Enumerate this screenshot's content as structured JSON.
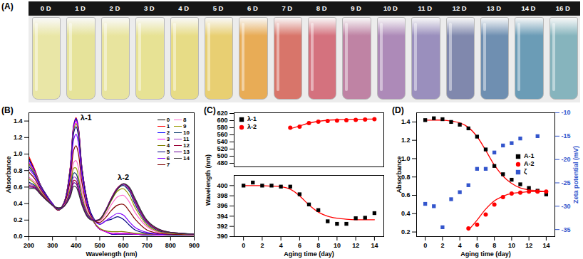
{
  "panel_A": {
    "label": "(A)",
    "vials": [
      {
        "label": "0 D",
        "color": "#e9e6a6"
      },
      {
        "label": "1 D",
        "color": "#e6e39a"
      },
      {
        "label": "2 D",
        "color": "#e8e49e"
      },
      {
        "label": "3 D",
        "color": "#e7e294"
      },
      {
        "label": "4 D",
        "color": "#e7dc86"
      },
      {
        "label": "5 D",
        "color": "#e8cf72"
      },
      {
        "label": "6 D",
        "color": "#e8ac56"
      },
      {
        "label": "7 D",
        "color": "#d8756a"
      },
      {
        "label": "8 D",
        "color": "#d4727e"
      },
      {
        "label": "9 D",
        "color": "#bf83a4"
      },
      {
        "label": "10 D",
        "color": "#ad8ab8"
      },
      {
        "label": "11 D",
        "color": "#9a8fbd"
      },
      {
        "label": "12 D",
        "color": "#8088ad"
      },
      {
        "label": "13 D",
        "color": "#6f8fb1"
      },
      {
        "label": "14 D",
        "color": "#6b9cb6"
      },
      {
        "label": "16 D",
        "color": "#86b4bd"
      }
    ]
  },
  "chart_data": [
    {
      "type": "line",
      "title": "(B)",
      "xlabel": "Wavelength (nm)",
      "ylabel": "Absorbance",
      "xlim": [
        200,
        900
      ],
      "xticks": [
        200,
        300,
        400,
        500,
        600,
        700,
        800,
        900
      ],
      "ylim": [
        0,
        1.5
      ],
      "yticks": [
        {
          "value": 0,
          "label": "0.0"
        },
        0.2,
        0.4,
        0.6,
        0.8,
        {
          "value": 1,
          "label": "1.0"
        },
        1.2,
        1.4
      ],
      "legend": "top-right",
      "annotations": [
        "λ-1",
        "λ-2"
      ],
      "x": [
        200,
        225,
        250,
        275,
        300,
        325,
        350,
        375,
        390,
        400,
        410,
        425,
        450,
        475,
        500,
        525,
        550,
        575,
        600,
        625,
        650,
        700,
        750,
        800,
        900
      ],
      "series": [
        {
          "name": "0",
          "color": "#000000",
          "values": [
            0.95,
            0.8,
            0.62,
            0.5,
            0.4,
            0.32,
            0.42,
            0.83,
            1.34,
            1.42,
            1.3,
            0.82,
            0.4,
            0.18,
            0.09,
            0.06,
            0.03,
            0.03,
            0.03,
            0.03,
            0.03,
            0.02,
            0.02,
            0.02,
            0.02
          ]
        },
        {
          "name": "1",
          "color": "#ff0000",
          "values": [
            0.97,
            0.81,
            0.62,
            0.5,
            0.4,
            0.32,
            0.42,
            0.84,
            1.36,
            1.44,
            1.32,
            0.83,
            0.4,
            0.18,
            0.09,
            0.06,
            0.03,
            0.03,
            0.03,
            0.03,
            0.03,
            0.02,
            0.02,
            0.02,
            0.02
          ]
        },
        {
          "name": "2",
          "color": "#0000ff",
          "values": [
            0.93,
            0.79,
            0.62,
            0.5,
            0.4,
            0.32,
            0.42,
            0.83,
            1.35,
            1.43,
            1.31,
            0.83,
            0.4,
            0.18,
            0.09,
            0.06,
            0.03,
            0.03,
            0.03,
            0.03,
            0.03,
            0.02,
            0.02,
            0.02,
            0.02
          ]
        },
        {
          "name": "3",
          "color": "#ff00ff",
          "values": [
            0.9,
            0.78,
            0.61,
            0.49,
            0.39,
            0.32,
            0.42,
            0.82,
            1.32,
            1.4,
            1.28,
            0.81,
            0.39,
            0.18,
            0.09,
            0.06,
            0.04,
            0.04,
            0.04,
            0.04,
            0.03,
            0.03,
            0.02,
            0.02,
            0.02
          ]
        },
        {
          "name": "4",
          "color": "#808000",
          "values": [
            0.88,
            0.77,
            0.61,
            0.49,
            0.39,
            0.32,
            0.42,
            0.81,
            1.29,
            1.37,
            1.26,
            0.8,
            0.39,
            0.18,
            0.1,
            0.07,
            0.06,
            0.06,
            0.06,
            0.05,
            0.04,
            0.03,
            0.03,
            0.02,
            0.02
          ]
        },
        {
          "name": "5",
          "color": "#000080",
          "values": [
            0.85,
            0.75,
            0.6,
            0.49,
            0.39,
            0.32,
            0.41,
            0.79,
            1.26,
            1.33,
            1.22,
            0.78,
            0.39,
            0.22,
            0.15,
            0.19,
            0.21,
            0.24,
            0.21,
            0.14,
            0.08,
            0.04,
            0.03,
            0.02,
            0.02
          ]
        },
        {
          "name": "6",
          "color": "#8000ff",
          "values": [
            0.82,
            0.73,
            0.59,
            0.48,
            0.39,
            0.32,
            0.4,
            0.74,
            1.18,
            1.24,
            1.13,
            0.73,
            0.36,
            0.2,
            0.15,
            0.19,
            0.24,
            0.28,
            0.26,
            0.18,
            0.11,
            0.05,
            0.03,
            0.03,
            0.02
          ]
        },
        {
          "name": "7",
          "color": "#800000",
          "values": [
            0.78,
            0.7,
            0.57,
            0.47,
            0.38,
            0.32,
            0.39,
            0.68,
            1.05,
            1.1,
            1.0,
            0.65,
            0.33,
            0.2,
            0.17,
            0.23,
            0.32,
            0.38,
            0.39,
            0.31,
            0.21,
            0.08,
            0.04,
            0.03,
            0.02
          ]
        },
        {
          "name": "8",
          "color": "#ff66cc",
          "values": [
            0.72,
            0.66,
            0.55,
            0.46,
            0.38,
            0.33,
            0.38,
            0.61,
            0.9,
            0.92,
            0.83,
            0.55,
            0.29,
            0.2,
            0.19,
            0.27,
            0.39,
            0.48,
            0.5,
            0.42,
            0.29,
            0.12,
            0.05,
            0.04,
            0.03
          ]
        },
        {
          "name": "9",
          "color": "#999900",
          "values": [
            0.7,
            0.64,
            0.54,
            0.46,
            0.38,
            0.33,
            0.37,
            0.58,
            0.83,
            0.83,
            0.72,
            0.49,
            0.27,
            0.2,
            0.2,
            0.3,
            0.44,
            0.55,
            0.58,
            0.5,
            0.35,
            0.14,
            0.06,
            0.04,
            0.03
          ]
        },
        {
          "name": "10",
          "color": "#003366",
          "values": [
            0.66,
            0.62,
            0.53,
            0.45,
            0.38,
            0.33,
            0.37,
            0.55,
            0.77,
            0.76,
            0.66,
            0.45,
            0.26,
            0.2,
            0.21,
            0.32,
            0.47,
            0.58,
            0.62,
            0.55,
            0.39,
            0.16,
            0.07,
            0.05,
            0.03
          ]
        },
        {
          "name": "11",
          "color": "#9933cc",
          "values": [
            0.64,
            0.61,
            0.52,
            0.45,
            0.38,
            0.34,
            0.37,
            0.53,
            0.72,
            0.71,
            0.62,
            0.43,
            0.25,
            0.2,
            0.21,
            0.32,
            0.47,
            0.59,
            0.63,
            0.57,
            0.41,
            0.17,
            0.08,
            0.05,
            0.03
          ]
        },
        {
          "name": "12",
          "color": "#990033",
          "values": [
            0.62,
            0.6,
            0.52,
            0.45,
            0.38,
            0.34,
            0.37,
            0.51,
            0.68,
            0.67,
            0.58,
            0.41,
            0.24,
            0.2,
            0.21,
            0.32,
            0.47,
            0.59,
            0.64,
            0.58,
            0.43,
            0.18,
            0.08,
            0.05,
            0.03
          ]
        },
        {
          "name": "13",
          "color": "#660099",
          "values": [
            0.6,
            0.59,
            0.51,
            0.44,
            0.38,
            0.34,
            0.37,
            0.5,
            0.65,
            0.64,
            0.56,
            0.4,
            0.24,
            0.2,
            0.21,
            0.32,
            0.46,
            0.58,
            0.64,
            0.59,
            0.44,
            0.19,
            0.09,
            0.05,
            0.03
          ]
        },
        {
          "name": "14",
          "color": "#333333",
          "values": [
            0.58,
            0.58,
            0.51,
            0.44,
            0.38,
            0.35,
            0.37,
            0.48,
            0.61,
            0.6,
            0.53,
            0.38,
            0.23,
            0.19,
            0.21,
            0.31,
            0.45,
            0.57,
            0.64,
            0.6,
            0.46,
            0.2,
            0.09,
            0.05,
            0.03
          ]
        }
      ]
    },
    {
      "type": "scatter",
      "title": "(C)",
      "xlabel": "Aging time (day)",
      "ylabel": "Wavelength (nm)",
      "xlim": [
        -1,
        15
      ],
      "xticks": [
        0,
        2,
        4,
        6,
        8,
        10,
        12,
        14
      ],
      "y_segments": [
        {
          "ylim": [
            390,
            402
          ],
          "yticks": [
            390,
            392,
            394,
            396,
            398,
            400
          ]
        },
        {
          "ylim": [
            470,
            622
          ],
          "yticks": [
            480,
            500,
            520,
            540,
            560,
            580,
            600,
            620
          ]
        }
      ],
      "legend": "top-left",
      "x": [
        0,
        1,
        2,
        3,
        4,
        5,
        6,
        7,
        8,
        9,
        10,
        11,
        12,
        13,
        14
      ],
      "series": [
        {
          "name": "λ-1",
          "color": "#000000",
          "marker": "square",
          "values": [
            400,
            400.6,
            400,
            400,
            399.8,
            399.8,
            398.3,
            396.3,
            395.2,
            393,
            392.5,
            392.5,
            393.6,
            393.7,
            394.6
          ],
          "fit": [
            400,
            400,
            400,
            399.9,
            399.8,
            399.3,
            398,
            396.2,
            394.8,
            394,
            393.6,
            393.4,
            393.3,
            393.3,
            393.3
          ]
        },
        {
          "name": "λ-2",
          "color": "#ff0000",
          "marker": "circle",
          "values": [
            null,
            null,
            null,
            null,
            null,
            580,
            583,
            593,
            597,
            599,
            600,
            601,
            602,
            603,
            604
          ],
          "fit": [
            null,
            null,
            null,
            null,
            null,
            577,
            585,
            593,
            598,
            601,
            602.5,
            603.3,
            603.7,
            604,
            604.2
          ]
        }
      ]
    },
    {
      "type": "scatter",
      "title": "(D)",
      "xlabel": "Aging time (day)",
      "ylabel": "Absorbance",
      "y2label": "Zeta potential (mV)",
      "xlim": [
        -1,
        15
      ],
      "xticks": [
        0,
        2,
        4,
        6,
        8,
        10,
        12,
        14
      ],
      "ylim": [
        0.15,
        1.5
      ],
      "yticks": [
        0.2,
        0.4,
        0.6,
        0.8,
        {
          "value": 1,
          "label": "1.0"
        },
        1.2,
        1.4
      ],
      "y2lim": [
        -36.5,
        -10
      ],
      "y2ticks": [
        -35,
        -30,
        -25,
        -20,
        -15,
        -10
      ],
      "legend": "right",
      "x": [
        0,
        1,
        2,
        3,
        4,
        5,
        6,
        7,
        8,
        9,
        10,
        11,
        12,
        13,
        14
      ],
      "series": [
        {
          "name": "A-1",
          "color": "#000000",
          "marker": "square",
          "values": [
            1.42,
            1.44,
            1.43,
            1.4,
            1.37,
            1.33,
            1.24,
            1.1,
            0.92,
            0.83,
            0.77,
            0.72,
            0.68,
            0.65,
            0.61
          ],
          "fit": [
            1.42,
            1.42,
            1.42,
            1.41,
            1.39,
            1.34,
            1.24,
            1.09,
            0.93,
            0.81,
            0.73,
            0.68,
            0.66,
            0.65,
            0.64
          ]
        },
        {
          "name": "A-2",
          "color": "#ff0000",
          "marker": "circle",
          "values": [
            null,
            null,
            null,
            null,
            null,
            0.24,
            0.28,
            0.39,
            0.5,
            0.58,
            0.62,
            0.63,
            0.64,
            0.64,
            0.64
          ],
          "fit": [
            null,
            null,
            null,
            null,
            null,
            0.22,
            0.33,
            0.45,
            0.54,
            0.59,
            0.62,
            0.63,
            0.64,
            0.64,
            0.64
          ]
        },
        {
          "name": "ζ",
          "color": "#3355cc",
          "marker": "square",
          "axis": "y2",
          "values": [
            -29.5,
            -30,
            -34.5,
            -28.5,
            -27,
            -25.5,
            -22,
            -22,
            -18.5,
            -17,
            -16.5,
            -15.5,
            null,
            -15,
            null
          ]
        }
      ]
    }
  ]
}
